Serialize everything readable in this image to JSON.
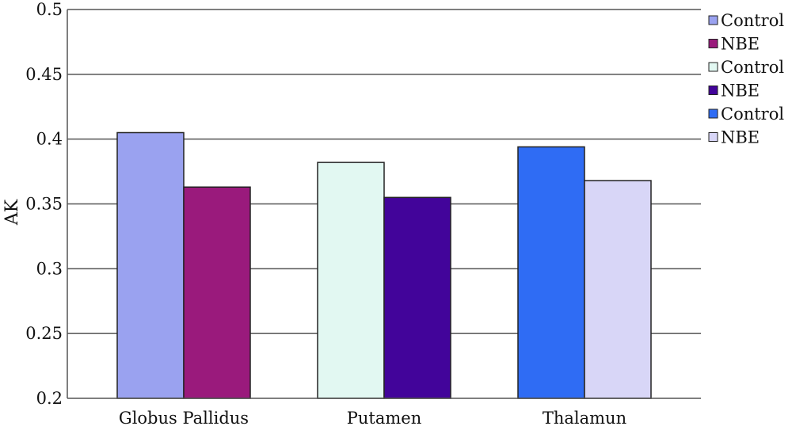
{
  "chart_data": {
    "type": "bar",
    "title": "",
    "xlabel": "",
    "ylabel": "AK",
    "ylim": [
      0.2,
      0.5
    ],
    "yticks": [
      0.2,
      0.25,
      0.3,
      0.35,
      0.4,
      0.45,
      0.5
    ],
    "ytick_labels": [
      "0.2",
      "0.25",
      "0.3",
      "0.35",
      "0.4",
      "0.45",
      "0.5"
    ],
    "grid": "horizontal",
    "legend_position": "right",
    "categories": [
      "Globus Pallidus",
      "Putamen",
      "Thalamun"
    ],
    "bars": [
      {
        "category": "Globus Pallidus",
        "label": "Control",
        "value": 0.405,
        "color": "#9aa2f0"
      },
      {
        "category": "Globus Pallidus",
        "label": "NBE",
        "value": 0.363,
        "color": "#9a1a7c"
      },
      {
        "category": "Putamen",
        "label": "Control",
        "value": 0.382,
        "color": "#e2f8f2"
      },
      {
        "category": "Putamen",
        "label": "NBE",
        "value": 0.355,
        "color": "#42049a"
      },
      {
        "category": "Thalamun",
        "label": "Control",
        "value": 0.394,
        "color": "#2f6cf4"
      },
      {
        "category": "Thalamun",
        "label": "NBE",
        "value": 0.368,
        "color": "#d8d6f7"
      }
    ],
    "legend": [
      {
        "label": "Control",
        "color": "#9aa2f0"
      },
      {
        "label": "NBE",
        "color": "#9a1a7c"
      },
      {
        "label": "Control",
        "color": "#e2f8f2"
      },
      {
        "label": "NBE",
        "color": "#42049a"
      },
      {
        "label": "Control",
        "color": "#2f6cf4"
      },
      {
        "label": "NBE",
        "color": "#d8d6f7"
      }
    ]
  }
}
